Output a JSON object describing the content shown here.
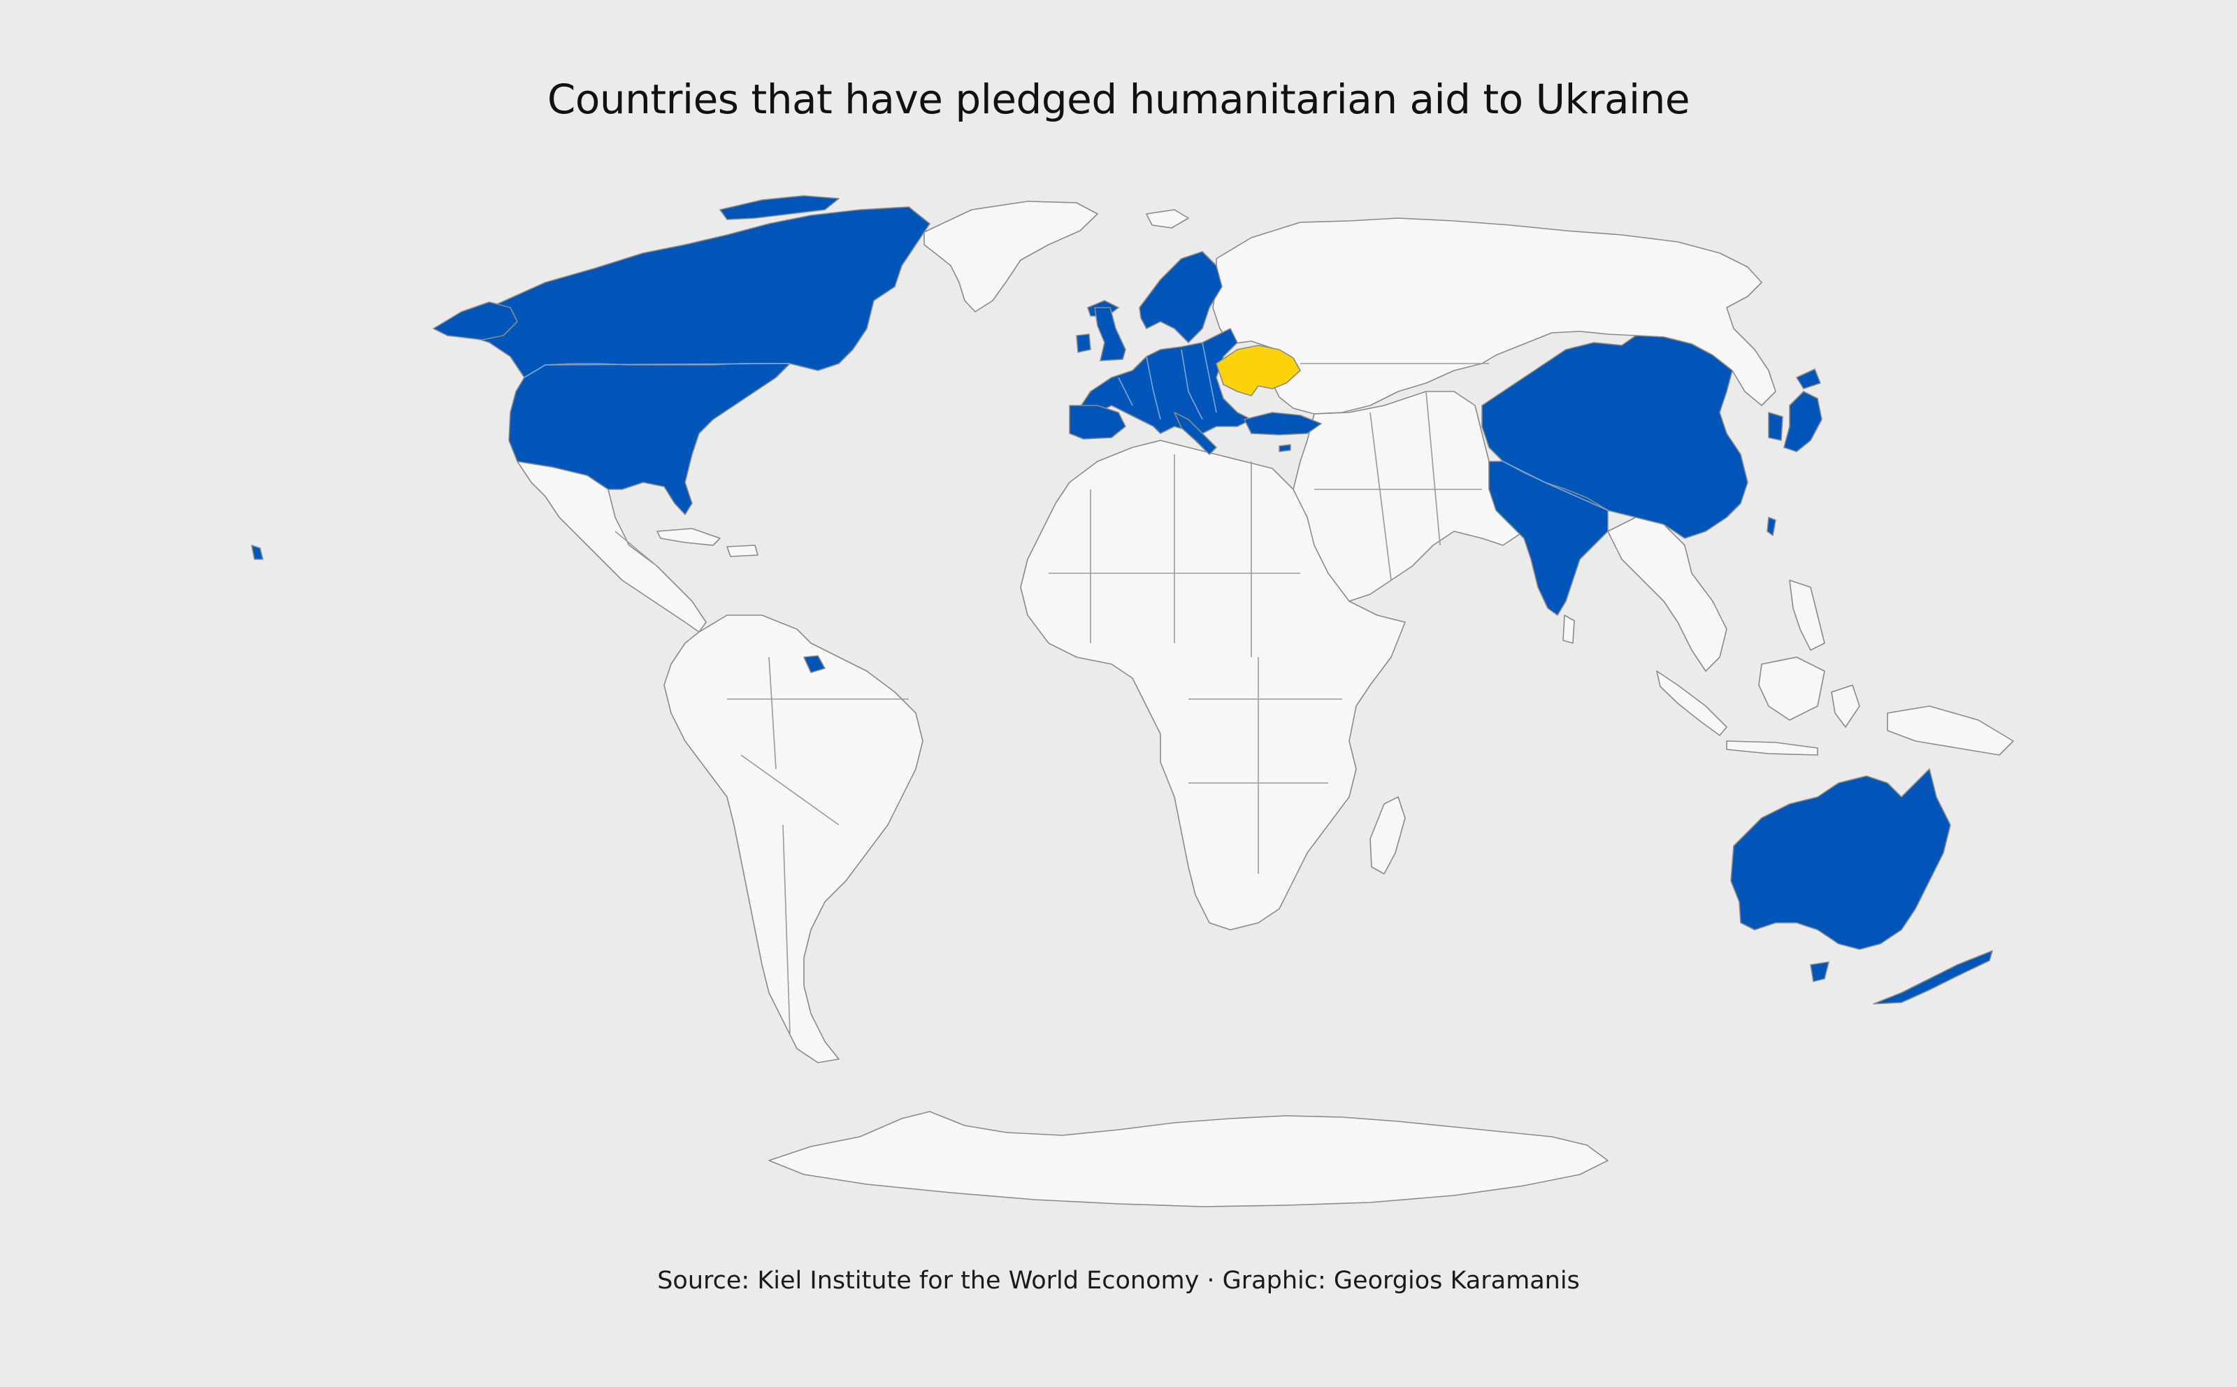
{
  "title": "Countries that have pledged humanitarian aid to Ukraine",
  "caption": "Source: Kiel Institute for the World Economy · Graphic: Georgios Karamanis",
  "colors": {
    "background": "#ebebeb",
    "land": "#f7f7f7",
    "pledged": "#0256b9",
    "ukraine": "#fcd20a",
    "border": "#8a8a8a"
  },
  "map": {
    "projection": "world-robinson-style",
    "ukraine": "Ukraine",
    "pledged_countries": [
      "Canada",
      "United States",
      "United Kingdom",
      "Ireland",
      "Iceland",
      "Norway",
      "Sweden",
      "Finland",
      "Denmark",
      "Netherlands",
      "Belgium",
      "Luxembourg",
      "France",
      "Spain",
      "Portugal",
      "Germany",
      "Switzerland",
      "Austria",
      "Italy",
      "Poland",
      "Czech Republic",
      "Slovakia",
      "Hungary",
      "Slovenia",
      "Croatia",
      "Romania",
      "Bulgaria",
      "Greece",
      "Cyprus",
      "Lithuania",
      "Latvia",
      "Estonia",
      "Malta",
      "Turkey",
      "China",
      "India",
      "Japan",
      "South Korea",
      "Taiwan",
      "Australia",
      "New Zealand",
      "French Guiana"
    ]
  }
}
